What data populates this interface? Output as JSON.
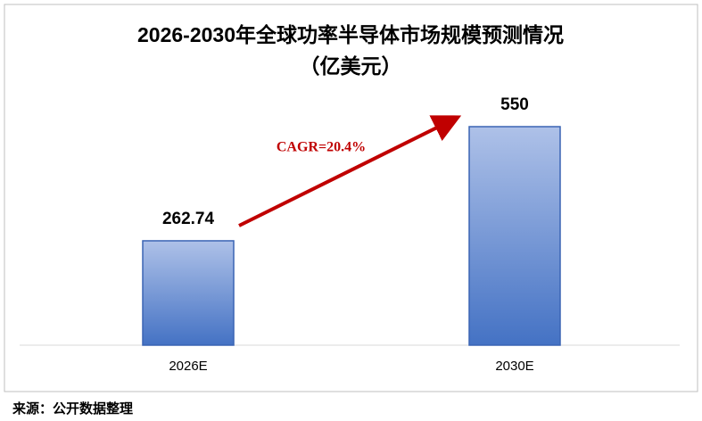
{
  "chart_data": {
    "type": "bar",
    "title": "2026-2030年全球功率半导体市场规模预测情况",
    "subtitle": "（亿美元）",
    "categories": [
      "2026E",
      "2030E"
    ],
    "values": [
      262.74,
      550
    ],
    "color": "#4472c4",
    "annotation": "CAGR=20.4%",
    "source": "来源：公开数据整理"
  }
}
